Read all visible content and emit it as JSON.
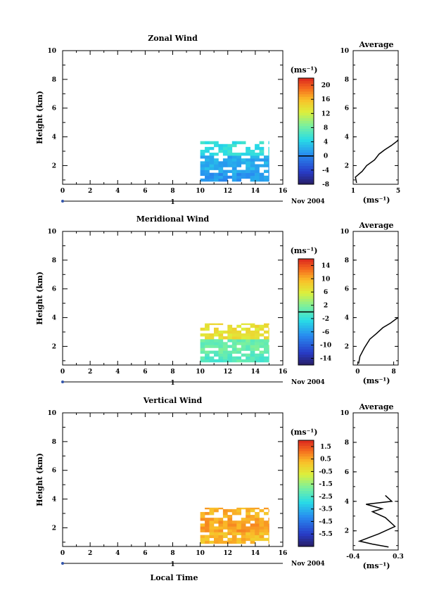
{
  "chart_data": [
    {
      "type": "heatmap",
      "title": "Zonal Wind",
      "xlabel": "",
      "ylabel": "Height (km)",
      "xlim": [
        0,
        16
      ],
      "ylim": [
        0.7,
        10
      ],
      "xticks": [
        "0",
        "2",
        "4",
        "6",
        "8",
        "10",
        "12",
        "14",
        "16"
      ],
      "yticks": [
        "2",
        "4",
        "6",
        "8",
        "10"
      ],
      "day_axis": {
        "label": "1",
        "date": "Nov 2004"
      },
      "colorbar": {
        "unit": "(ms⁻¹)",
        "min": -8,
        "max": 22,
        "ticks": [
          "20",
          "16",
          "12",
          "8",
          "4",
          "0",
          "-4",
          "-8"
        ],
        "tick_values": [
          20,
          16,
          12,
          8,
          4,
          0,
          -4,
          -8
        ],
        "zero_line": 0
      },
      "data_extent": {
        "x": [
          10,
          15
        ],
        "y": [
          0.9,
          3.7
        ]
      },
      "layers": [
        {
          "y": [
            0.9,
            1.4
          ],
          "value": 1
        },
        {
          "y": [
            1.4,
            2.6
          ],
          "value": 2
        },
        {
          "y": [
            2.6,
            3.7
          ],
          "value": 5
        }
      ],
      "average": {
        "title": "Average",
        "xlabel": "(ms⁻¹)",
        "xlim": [
          1,
          5
        ],
        "xticks": [
          "1",
          "5"
        ],
        "yticks": [
          "2",
          "4",
          "6",
          "8",
          "10"
        ],
        "profile": [
          [
            1.3,
            0.8
          ],
          [
            1.2,
            1.2
          ],
          [
            1.8,
            1.6
          ],
          [
            2.2,
            2.0
          ],
          [
            2.9,
            2.4
          ],
          [
            3.3,
            2.8
          ],
          [
            3.8,
            3.1
          ],
          [
            4.4,
            3.4
          ],
          [
            4.9,
            3.7
          ],
          [
            5.0,
            3.8
          ]
        ]
      }
    },
    {
      "type": "heatmap",
      "title": "Meridional Wind",
      "xlabel": "",
      "ylabel": "Height (km)",
      "xlim": [
        0,
        16
      ],
      "ylim": [
        0.7,
        10
      ],
      "xticks": [
        "0",
        "2",
        "4",
        "6",
        "8",
        "10",
        "12",
        "14",
        "16"
      ],
      "yticks": [
        "2",
        "4",
        "6",
        "8",
        "10"
      ],
      "day_axis": {
        "label": "1",
        "date": "Nov 2004"
      },
      "colorbar": {
        "unit": "(ms⁻¹)",
        "min": -16,
        "max": 16,
        "ticks": [
          "14",
          "10",
          "6",
          "2",
          "-2",
          "-6",
          "-10",
          "-14"
        ],
        "tick_values": [
          14,
          10,
          6,
          2,
          -2,
          -6,
          -10,
          -14
        ],
        "zero_line": 0
      },
      "data_extent": {
        "x": [
          10,
          15
        ],
        "y": [
          0.9,
          3.6
        ]
      },
      "layers": [
        {
          "y": [
            0.9,
            1.5
          ],
          "value": 0
        },
        {
          "y": [
            1.5,
            2.4
          ],
          "value": 1
        },
        {
          "y": [
            2.4,
            3.6
          ],
          "value": 7
        }
      ],
      "average": {
        "title": "Average",
        "xlabel": "(ms⁻¹)",
        "xlim": [
          -1,
          9
        ],
        "xticks": [
          "0",
          "8"
        ],
        "yticks": [
          "2",
          "4",
          "6",
          "8",
          "10"
        ],
        "profile": [
          [
            0.2,
            0.8
          ],
          [
            0.5,
            1.3
          ],
          [
            1.5,
            1.9
          ],
          [
            2.7,
            2.5
          ],
          [
            4.2,
            2.9
          ],
          [
            5.6,
            3.3
          ],
          [
            7.2,
            3.6
          ],
          [
            8.5,
            3.9
          ],
          [
            9.0,
            4.0
          ]
        ]
      }
    },
    {
      "type": "heatmap",
      "title": "Vertical Wind",
      "xlabel": "Local Time",
      "ylabel": "Height (km)",
      "xlim": [
        0,
        16
      ],
      "ylim": [
        0.7,
        10
      ],
      "xticks": [
        "0",
        "2",
        "4",
        "6",
        "8",
        "10",
        "12",
        "14",
        "16"
      ],
      "yticks": [
        "2",
        "4",
        "6",
        "8",
        "10"
      ],
      "day_axis": {
        "label": "1",
        "date": "Nov 2004"
      },
      "colorbar": {
        "unit": "(ms⁻¹)",
        "min": -6.5,
        "max": 2.0,
        "ticks": [
          "1.5",
          "0.5",
          "-0.5",
          "-1.5",
          "-2.5",
          "-3.5",
          "-4.5",
          "-5.5"
        ],
        "tick_values": [
          1.5,
          0.5,
          -0.5,
          -1.5,
          -2.5,
          -3.5,
          -4.5,
          -5.5
        ],
        "zero_line": null
      },
      "data_extent": {
        "x": [
          10,
          15
        ],
        "y": [
          0.9,
          3.4
        ]
      },
      "layers": [
        {
          "y": [
            0.9,
            1.6
          ],
          "value": 0.3
        },
        {
          "y": [
            1.6,
            2.6
          ],
          "value": 0.6
        },
        {
          "y": [
            2.6,
            3.4
          ],
          "value": 0.4
        }
      ],
      "average": {
        "title": "Average",
        "xlabel": "(ms⁻¹)",
        "xlim": [
          -0.4,
          0.3
        ],
        "xticks": [
          "-0.4",
          "0.3"
        ],
        "yticks": [
          "2",
          "4",
          "6",
          "8",
          "10"
        ],
        "profile": [
          [
            0.15,
            0.9
          ],
          [
            -0.1,
            1.1
          ],
          [
            -0.3,
            1.3
          ],
          [
            0.0,
            1.8
          ],
          [
            0.25,
            2.3
          ],
          [
            0.1,
            2.9
          ],
          [
            -0.1,
            3.3
          ],
          [
            0.05,
            3.5
          ],
          [
            -0.2,
            3.8
          ],
          [
            0.2,
            4.0
          ],
          [
            0.1,
            4.4
          ]
        ]
      }
    }
  ]
}
